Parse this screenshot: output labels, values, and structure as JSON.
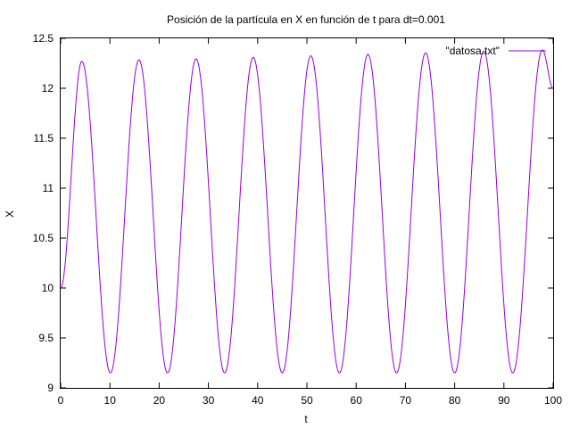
{
  "chart_data": {
    "type": "line",
    "title": "Posición de la partícula en X en función de t para dt=0.001",
    "xlabel": "t",
    "ylabel": "X",
    "xlim": [
      0,
      100
    ],
    "ylim": [
      9,
      12.5
    ],
    "xticks": [
      "0",
      "10",
      "20",
      "30",
      "40",
      "50",
      "60",
      "70",
      "80",
      "90",
      "100"
    ],
    "yticks": [
      "9",
      "9.5",
      "10",
      "10.5",
      "11",
      "11.5",
      "12",
      "12.5"
    ],
    "grid": false,
    "legend_position": "top-right",
    "series": [
      {
        "name": "\"datosa.txt\"",
        "color": "#9400d3",
        "points": [
          [
            0,
            10.0
          ],
          [
            4.3,
            12.27
          ],
          [
            10.1,
            9.15
          ],
          [
            15.9,
            12.285
          ],
          [
            21.7,
            9.15
          ],
          [
            27.5,
            12.295
          ],
          [
            33.3,
            9.15
          ],
          [
            39.1,
            12.31
          ],
          [
            45.0,
            9.15
          ],
          [
            50.8,
            12.325
          ],
          [
            56.6,
            9.15
          ],
          [
            62.4,
            12.34
          ],
          [
            68.2,
            9.15
          ],
          [
            74.1,
            12.355
          ],
          [
            80.0,
            9.15
          ],
          [
            85.9,
            12.37
          ],
          [
            91.8,
            9.15
          ],
          [
            97.8,
            12.385
          ],
          [
            100,
            12.0
          ]
        ]
      }
    ]
  }
}
